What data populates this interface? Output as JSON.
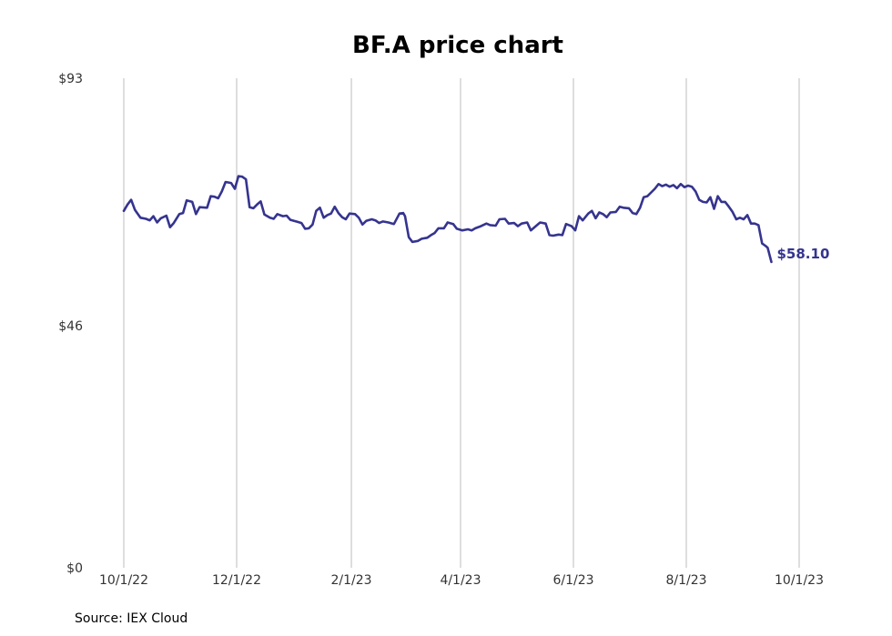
{
  "chart_data": {
    "type": "line",
    "title": "BF.A price chart",
    "source": "Source: IEX Cloud",
    "xlabel": "",
    "ylabel": "",
    "x_start": "2022-10-01",
    "x_end": "2023-10-01",
    "x_ticks": [
      {
        "date": "2022-10-01",
        "label": "10/1/22"
      },
      {
        "date": "2022-12-01",
        "label": "12/1/22"
      },
      {
        "date": "2023-02-01",
        "label": "2/1/23"
      },
      {
        "date": "2023-04-01",
        "label": "4/1/23"
      },
      {
        "date": "2023-06-01",
        "label": "6/1/23"
      },
      {
        "date": "2023-08-01",
        "label": "8/1/23"
      },
      {
        "date": "2023-10-01",
        "label": "10/1/23"
      }
    ],
    "ylim": [
      0,
      93
    ],
    "y_ticks": [
      {
        "value": 0,
        "label": "$0"
      },
      {
        "value": 46,
        "label": "$46"
      },
      {
        "value": 93,
        "label": "$93"
      }
    ],
    "grid": "vertical",
    "line_color": "#35348f",
    "last_value_label": "$58.10",
    "series": [
      {
        "points": [
          [
            "2022-10-01",
            67.8
          ],
          [
            "2022-10-03",
            69.0
          ],
          [
            "2022-10-05",
            69.9
          ],
          [
            "2022-10-07",
            68.0
          ],
          [
            "2022-10-10",
            66.5
          ],
          [
            "2022-10-13",
            66.3
          ],
          [
            "2022-10-15",
            66.0
          ],
          [
            "2022-10-17",
            66.8
          ],
          [
            "2022-10-19",
            65.6
          ],
          [
            "2022-10-21",
            66.4
          ],
          [
            "2022-10-24",
            66.9
          ],
          [
            "2022-10-26",
            64.7
          ],
          [
            "2022-10-28",
            65.5
          ],
          [
            "2022-10-31",
            67.2
          ],
          [
            "2022-11-02",
            67.4
          ],
          [
            "2022-11-04",
            69.8
          ],
          [
            "2022-11-07",
            69.5
          ],
          [
            "2022-11-09",
            67.2
          ],
          [
            "2022-11-11",
            68.5
          ],
          [
            "2022-11-15",
            68.4
          ],
          [
            "2022-11-17",
            70.6
          ],
          [
            "2022-11-19",
            70.5
          ],
          [
            "2022-11-21",
            70.2
          ],
          [
            "2022-11-23",
            71.5
          ],
          [
            "2022-11-25",
            73.3
          ],
          [
            "2022-11-28",
            73.1
          ],
          [
            "2022-11-30",
            72.0
          ],
          [
            "2022-12-02",
            74.4
          ],
          [
            "2022-12-04",
            74.3
          ],
          [
            "2022-12-06",
            73.8
          ],
          [
            "2022-12-08",
            68.5
          ],
          [
            "2022-12-10",
            68.3
          ],
          [
            "2022-12-12",
            69.0
          ],
          [
            "2022-12-14",
            69.6
          ],
          [
            "2022-12-16",
            67.1
          ],
          [
            "2022-12-19",
            66.5
          ],
          [
            "2022-12-21",
            66.3
          ],
          [
            "2022-12-23",
            67.2
          ],
          [
            "2022-12-26",
            66.8
          ],
          [
            "2022-12-28",
            66.9
          ],
          [
            "2022-12-30",
            66.1
          ],
          [
            "2023-01-03",
            65.7
          ],
          [
            "2023-01-05",
            65.5
          ],
          [
            "2023-01-07",
            64.4
          ],
          [
            "2023-01-09",
            64.5
          ],
          [
            "2023-01-11",
            65.2
          ],
          [
            "2023-01-13",
            67.8
          ],
          [
            "2023-01-15",
            68.4
          ],
          [
            "2023-01-17",
            66.5
          ],
          [
            "2023-01-19",
            67.0
          ],
          [
            "2023-01-21",
            67.3
          ],
          [
            "2023-01-23",
            68.6
          ],
          [
            "2023-01-25",
            67.4
          ],
          [
            "2023-01-27",
            66.6
          ],
          [
            "2023-01-29",
            66.2
          ],
          [
            "2023-01-31",
            67.3
          ],
          [
            "2023-02-03",
            67.2
          ],
          [
            "2023-02-05",
            66.5
          ],
          [
            "2023-02-07",
            65.2
          ],
          [
            "2023-02-09",
            65.9
          ],
          [
            "2023-02-12",
            66.2
          ],
          [
            "2023-02-14",
            66.0
          ],
          [
            "2023-02-16",
            65.5
          ],
          [
            "2023-02-18",
            65.8
          ],
          [
            "2023-02-21",
            65.6
          ],
          [
            "2023-02-24",
            65.3
          ],
          [
            "2023-02-27",
            67.3
          ],
          [
            "2023-03-01",
            67.4
          ],
          [
            "2023-03-02",
            66.8
          ],
          [
            "2023-03-04",
            62.8
          ],
          [
            "2023-03-06",
            61.9
          ],
          [
            "2023-03-09",
            62.1
          ],
          [
            "2023-03-11",
            62.5
          ],
          [
            "2023-03-14",
            62.7
          ],
          [
            "2023-03-16",
            63.2
          ],
          [
            "2023-03-18",
            63.6
          ],
          [
            "2023-03-20",
            64.5
          ],
          [
            "2023-03-23",
            64.5
          ],
          [
            "2023-03-25",
            65.6
          ],
          [
            "2023-03-28",
            65.3
          ],
          [
            "2023-03-30",
            64.4
          ],
          [
            "2023-04-02",
            64.1
          ],
          [
            "2023-04-05",
            64.3
          ],
          [
            "2023-04-07",
            64.1
          ],
          [
            "2023-04-09",
            64.5
          ],
          [
            "2023-04-12",
            64.9
          ],
          [
            "2023-04-15",
            65.4
          ],
          [
            "2023-04-17",
            65.1
          ],
          [
            "2023-04-20",
            65.0
          ],
          [
            "2023-04-22",
            66.2
          ],
          [
            "2023-04-25",
            66.3
          ],
          [
            "2023-04-27",
            65.4
          ],
          [
            "2023-04-30",
            65.5
          ],
          [
            "2023-05-02",
            64.9
          ],
          [
            "2023-05-04",
            65.4
          ],
          [
            "2023-05-07",
            65.6
          ],
          [
            "2023-05-09",
            64.1
          ],
          [
            "2023-05-12",
            65.0
          ],
          [
            "2023-05-14",
            65.6
          ],
          [
            "2023-05-17",
            65.4
          ],
          [
            "2023-05-19",
            63.2
          ],
          [
            "2023-05-21",
            63.1
          ],
          [
            "2023-05-24",
            63.3
          ],
          [
            "2023-05-26",
            63.2
          ],
          [
            "2023-05-28",
            65.3
          ],
          [
            "2023-05-31",
            64.9
          ],
          [
            "2023-06-02",
            64.1
          ],
          [
            "2023-06-04",
            66.8
          ],
          [
            "2023-06-06",
            66.0
          ],
          [
            "2023-06-09",
            67.3
          ],
          [
            "2023-06-11",
            67.8
          ],
          [
            "2023-06-13",
            66.4
          ],
          [
            "2023-06-15",
            67.5
          ],
          [
            "2023-06-17",
            67.2
          ],
          [
            "2023-06-19",
            66.6
          ],
          [
            "2023-06-21",
            67.5
          ],
          [
            "2023-06-24",
            67.6
          ],
          [
            "2023-06-26",
            68.6
          ],
          [
            "2023-06-28",
            68.4
          ],
          [
            "2023-07-01",
            68.3
          ],
          [
            "2023-07-03",
            67.4
          ],
          [
            "2023-07-05",
            67.2
          ],
          [
            "2023-07-07",
            68.4
          ],
          [
            "2023-07-09",
            70.4
          ],
          [
            "2023-07-11",
            70.6
          ],
          [
            "2023-07-13",
            71.3
          ],
          [
            "2023-07-15",
            72.0
          ],
          [
            "2023-07-17",
            72.9
          ],
          [
            "2023-07-19",
            72.5
          ],
          [
            "2023-07-21",
            72.8
          ],
          [
            "2023-07-23",
            72.4
          ],
          [
            "2023-07-25",
            72.7
          ],
          [
            "2023-07-27",
            72.1
          ],
          [
            "2023-07-29",
            72.9
          ],
          [
            "2023-07-31",
            72.3
          ],
          [
            "2023-08-02",
            72.6
          ],
          [
            "2023-08-04",
            72.4
          ],
          [
            "2023-08-06",
            71.5
          ],
          [
            "2023-08-08",
            69.9
          ],
          [
            "2023-08-10",
            69.5
          ],
          [
            "2023-08-12",
            69.4
          ],
          [
            "2023-08-14",
            70.4
          ],
          [
            "2023-08-16",
            68.2
          ],
          [
            "2023-08-18",
            70.6
          ],
          [
            "2023-08-20",
            69.5
          ],
          [
            "2023-08-22",
            69.5
          ],
          [
            "2023-08-24",
            68.6
          ],
          [
            "2023-08-26",
            67.6
          ],
          [
            "2023-08-28",
            66.2
          ],
          [
            "2023-08-30",
            66.5
          ],
          [
            "2023-09-01",
            66.2
          ],
          [
            "2023-09-03",
            67.0
          ],
          [
            "2023-09-05",
            65.4
          ],
          [
            "2023-09-07",
            65.4
          ],
          [
            "2023-09-09",
            65.1
          ],
          [
            "2023-09-11",
            61.6
          ],
          [
            "2023-09-13",
            61.1
          ],
          [
            "2023-09-14",
            60.8
          ],
          [
            "2023-09-16",
            58.1
          ]
        ]
      }
    ]
  }
}
